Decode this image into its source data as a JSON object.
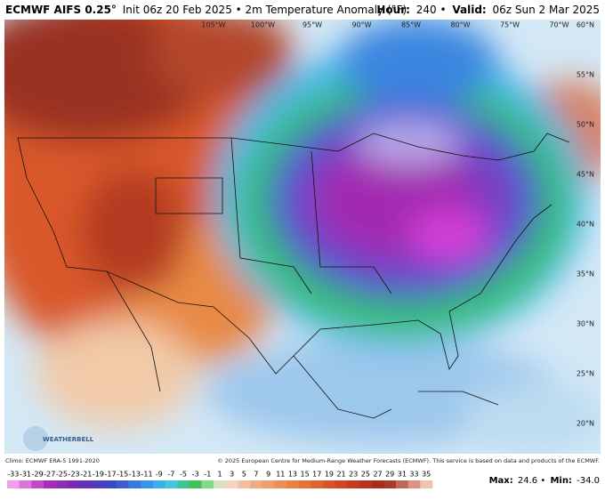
{
  "header": {
    "title": "ECMWF AIFS 0.25°",
    "subtitle": "Init 06z 20 Feb 2025 • 2m Temperature Anomaly (°F)",
    "hour_label": "Hour:",
    "hour_value": "240 •",
    "valid_label": "Valid:",
    "valid_value": "06z Sun 2 Mar 2025"
  },
  "map": {
    "longitude_labels": [
      "105°W",
      "100°W",
      "95°W",
      "90°W",
      "85°W",
      "80°W",
      "75°W",
      "70°W"
    ],
    "latitude_labels": [
      "60°N",
      "55°N",
      "50°N",
      "45°N",
      "40°N",
      "35°N",
      "30°N",
      "25°N",
      "20°N"
    ],
    "logo": "WEATHERBELL"
  },
  "footer": {
    "climo": "Climo: ECMWF ERA-5 1991-2020",
    "copyright": "© 2025 European Centre for Medium-Range Weather Forecasts (ECMWF). This service is based on data and products of the ECMWF.",
    "max_label": "Max:",
    "max_value": "24.6 •",
    "min_label": "Min:",
    "min_value": "-34.0"
  },
  "colorbar": {
    "labels": [
      -33,
      -31,
      -29,
      -27,
      -25,
      -23,
      -21,
      -19,
      -17,
      -15,
      -13,
      -11,
      -9,
      -7,
      -5,
      -3,
      -1,
      1,
      3,
      5,
      7,
      9,
      11,
      13,
      15,
      17,
      19,
      21,
      23,
      25,
      27,
      29,
      31,
      33,
      35
    ]
  }
}
